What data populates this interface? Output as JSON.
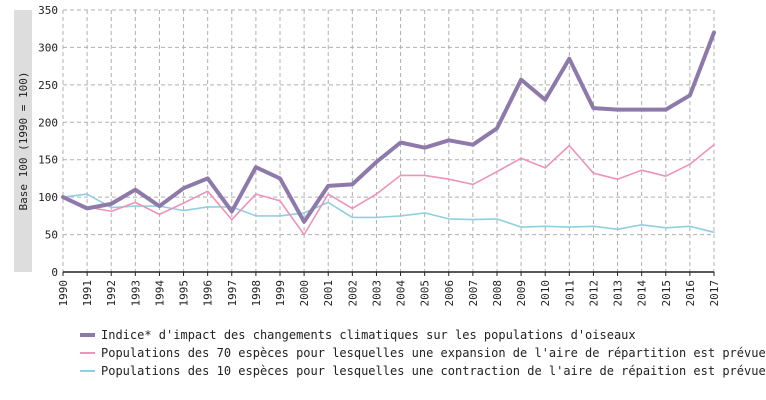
{
  "chart_data": {
    "type": "line",
    "ylabel": "Base 100 (1990 = 100)",
    "ylim": [
      0,
      350
    ],
    "yticks": [
      0,
      50,
      100,
      150,
      200,
      250,
      300,
      350
    ],
    "grid": true,
    "legend_position": "bottom",
    "x": [
      "1990",
      "1991",
      "1992",
      "1993",
      "1994",
      "1995",
      "1996",
      "1997",
      "1998",
      "1999",
      "2000",
      "2001",
      "2002",
      "2003",
      "2004",
      "2005",
      "2006",
      "2007",
      "2008",
      "2009",
      "2010",
      "2011",
      "2012",
      "2013",
      "2014",
      "2015",
      "2016",
      "2017"
    ],
    "series": [
      {
        "name": "Indice* d'impact des changements climatiques sur les populations d'oiseaux",
        "color": "#8e79ab",
        "values": [
          100,
          85,
          91,
          110,
          88,
          112,
          125,
          81,
          140,
          125,
          67,
          115,
          117,
          147,
          173,
          166,
          176,
          170,
          192,
          257,
          230,
          285,
          219,
          217,
          217,
          217,
          236,
          320
        ]
      },
      {
        "name": "Populations des 70 espèces pour lesquelles une expansion de l'aire de répartition est prévue",
        "color": "#ee93ba",
        "values": [
          100,
          87,
          81,
          93,
          77,
          92,
          108,
          70,
          104,
          95,
          50,
          104,
          85,
          104,
          129,
          129,
          124,
          117,
          134,
          152,
          139,
          169,
          132,
          124,
          136,
          128,
          144,
          170
        ]
      },
      {
        "name": "Populations des 10 espèces pour lesquelles une contraction de l'aire de répaition est prévue",
        "color": "#8fd0df",
        "values": [
          100,
          104,
          86,
          88,
          88,
          82,
          87,
          87,
          75,
          75,
          79,
          93,
          73,
          73,
          75,
          79,
          71,
          70,
          71,
          60,
          61,
          60,
          61,
          57,
          63,
          59,
          61,
          53
        ]
      }
    ]
  }
}
